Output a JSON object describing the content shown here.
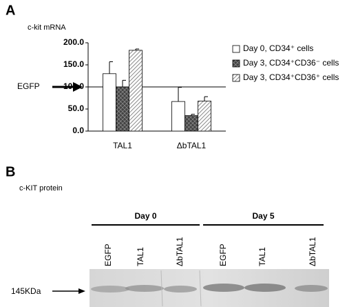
{
  "panel_a": {
    "letter": "A"
  },
  "chart_data": {
    "type": "bar",
    "ylabel": "c-kit mRNA",
    "categories": [
      "TAL1",
      "ΔbTAL1"
    ],
    "series": [
      {
        "name": "Day 0, CD34⁺ cells",
        "color": "#ffffff",
        "pattern": "solid",
        "values": [
          130,
          67
        ],
        "errors": [
          27,
          32
        ]
      },
      {
        "name": "Day 3, CD34⁺CD36⁻ cells",
        "color": "#444444",
        "pattern": "crosshatch",
        "values": [
          100,
          35
        ],
        "errors": [
          15,
          3
        ]
      },
      {
        "name": "Day 3, CD34⁺CD36⁺ cells",
        "color": "#888888",
        "pattern": "diagonal",
        "values": [
          183,
          68
        ],
        "errors": [
          3,
          10
        ]
      }
    ],
    "ylim": [
      0,
      200
    ],
    "yticks": [
      {
        "value": 0,
        "label": "0.0"
      },
      {
        "value": 50,
        "label": "50.0"
      },
      {
        "value": 100,
        "label": "100.0"
      },
      {
        "value": 150,
        "label": "150.0"
      },
      {
        "value": 200,
        "label": "200.0"
      }
    ],
    "reference_line": {
      "value": 100,
      "label": "EGFP"
    },
    "legend": "right"
  },
  "panel_b": {
    "letter": "B",
    "title": "c-KIT protein",
    "groups": [
      {
        "label": "Day 0",
        "lanes": [
          "EGFP",
          "TAL1",
          "ΔbTAL1"
        ]
      },
      {
        "label": "Day 5",
        "lanes": [
          "EGFP",
          "TAL1",
          "ΔbTAL1"
        ]
      }
    ],
    "marker": "145KDa"
  }
}
